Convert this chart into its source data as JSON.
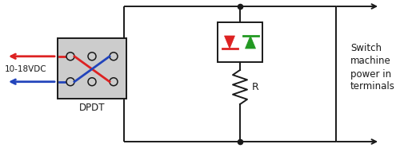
{
  "bg_color": "#ffffff",
  "line_color": "#1a1a1a",
  "red_color": "#dd2222",
  "blue_color": "#2244bb",
  "green_color": "#229922",
  "gray_fill": "#cccccc",
  "dpdt_label": "DPDT",
  "voltage_label": "10-18VDC",
  "r_label": "R",
  "sm_label": "Switch\nmachine\npower in\nterminals",
  "figsize": [
    5.0,
    1.86
  ],
  "dpi": 100
}
